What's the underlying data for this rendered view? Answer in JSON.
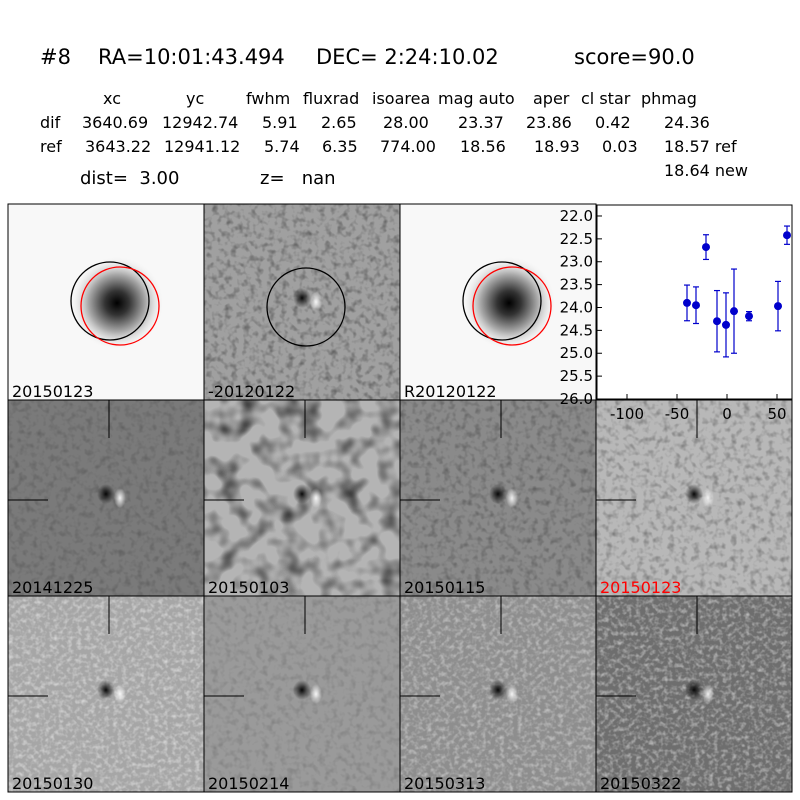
{
  "header": {
    "title": [
      "#8",
      "RA=10:01:43.494",
      "DEC= 2:24:10.02",
      "score=90.0"
    ]
  },
  "table": {
    "columns": [
      "xc",
      "yc",
      "fwhm",
      "fluxrad",
      "isoarea",
      "mag auto",
      "aper",
      "cl star",
      "phmag"
    ],
    "rows": [
      [
        "dif",
        "3640.69",
        "12942.74",
        "5.91",
        "2.65",
        "28.00",
        "23.37",
        "23.86",
        "0.42",
        "24.36"
      ],
      [
        "ref",
        "3643.22",
        "12941.12",
        "5.74",
        "6.35",
        "774.00",
        "18.56",
        "18.93",
        "0.03",
        "18.57 ref"
      ]
    ],
    "extra": "18.64 new"
  },
  "distance": {
    "dist": "dist=  3.00",
    "z": "z=   nan"
  },
  "panels": [
    "20150123",
    "-20120122",
    "R20120122",
    null,
    "20141225",
    "20150103",
    "20150115",
    "20150123",
    "20150130",
    "20150214",
    "20150313",
    "20150322"
  ],
  "chart_data": {
    "type": "scatter",
    "x": [
      -40,
      -31,
      -21,
      -10,
      -1,
      7,
      22,
      51,
      60
    ],
    "series": [
      {
        "color": "#0000cc",
        "values": [
          23.9,
          23.95,
          22.68,
          24.3,
          24.38,
          24.08,
          24.19,
          23.97,
          22.42
        ],
        "errors": [
          0.39,
          0.4,
          0.27,
          0.67,
          0.7,
          0.92,
          0.1,
          0.54,
          0.2
        ]
      }
    ],
    "xlim": [
      -130,
      65
    ],
    "xticks": [
      -100,
      -50,
      0,
      50
    ],
    "ylim": [
      21.76,
      26
    ],
    "y_inverted": true,
    "yticks": [
      {
        "value": 22,
        "label": "22.0"
      },
      {
        "value": 22.5,
        "label": "22.5"
      },
      {
        "value": 23,
        "label": "23.0"
      },
      {
        "value": 23.5,
        "label": "23.5"
      },
      {
        "value": 24,
        "label": "24.0"
      },
      {
        "value": 24.5,
        "label": "24.5"
      },
      {
        "value": 25,
        "label": "25.0"
      },
      {
        "value": 25.5,
        "label": "25.5"
      },
      {
        "value": 26,
        "label": "26.0"
      }
    ]
  }
}
